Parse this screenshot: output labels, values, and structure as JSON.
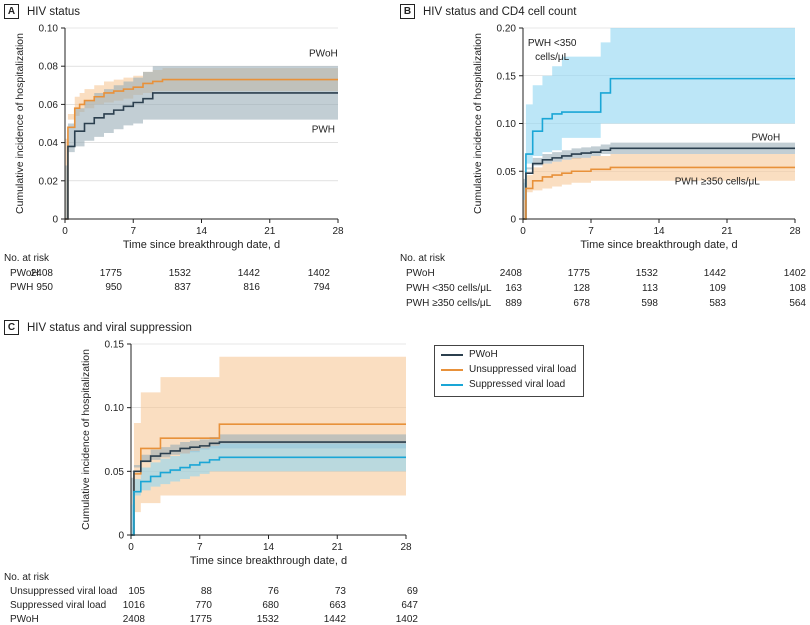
{
  "colors": {
    "pwoh": "#e8913a",
    "pwoh_band": "#f7c897",
    "pwh": "#2b3f4e",
    "pwh_band": "#9aaeb8",
    "cd4_low": "#1aa6d6",
    "cd4_low_band": "#8fd6f2",
    "cd4_high": "#e8913a",
    "cd4_high_band": "#f7c897",
    "vs_unsupp": "#e8913a",
    "vs_unsupp_band": "#f7c897",
    "vs_supp": "#1aa6d6",
    "vs_supp_band": "#8fd6f2",
    "axis": "#222222",
    "grid": "#cfcfcf"
  },
  "panel_a": {
    "letter": "A",
    "title": "HIV status",
    "risk": {
      "title": "No. at risk",
      "rows": [
        {
          "label": "PWoH",
          "values": [
            "2408",
            "1775",
            "1532",
            "1442",
            "1402"
          ]
        },
        {
          "label": "PWH",
          "values": [
            "950",
            "950",
            "837",
            "816",
            "794"
          ]
        }
      ]
    }
  },
  "panel_b": {
    "letter": "B",
    "title": "HIV status and CD4 cell count",
    "risk": {
      "title": "No. at risk",
      "rows": [
        {
          "label": "PWoH",
          "values": [
            "2408",
            "1775",
            "1532",
            "1442",
            "1402"
          ]
        },
        {
          "label": "PWH <350 cells/μL",
          "values": [
            "163",
            "128",
            "113",
            "109",
            "108"
          ]
        },
        {
          "label": "PWH ≥350 cells/μL",
          "values": [
            "889",
            "678",
            "598",
            "583",
            "564"
          ]
        }
      ]
    }
  },
  "panel_c": {
    "letter": "C",
    "title": "HIV status and viral suppression",
    "legend": [
      {
        "name": "PWoH",
        "color": "#2b3f4e"
      },
      {
        "name": "Unsuppressed viral load",
        "color": "#e8913a"
      },
      {
        "name": "Suppressed viral load",
        "color": "#1aa6d6"
      }
    ],
    "risk": {
      "title": "No. at risk",
      "rows": [
        {
          "label": "Unsuppressed viral load",
          "values": [
            "105",
            "88",
            "76",
            "73",
            "69"
          ]
        },
        {
          "label": "Suppressed viral load",
          "values": [
            "1016",
            "770",
            "680",
            "663",
            "647"
          ]
        },
        {
          "label": "PWoH",
          "values": [
            "2408",
            "1775",
            "1532",
            "1442",
            "1402"
          ]
        }
      ]
    }
  },
  "chart_data": [
    {
      "type": "line",
      "panel": "A",
      "title": "HIV status",
      "xlabel": "Time since breakthrough date, d",
      "ylabel": "Cumulative incidence of hospitalization",
      "xlim": [
        0,
        28
      ],
      "ylim": [
        0,
        0.1
      ],
      "xticks": [
        "0",
        "7",
        "14",
        "21",
        "28"
      ],
      "yticks": [
        "0",
        "0.02",
        "0.04",
        "0.06",
        "0.08",
        "0.10"
      ],
      "series": [
        {
          "name": "PWoH",
          "color": "#e8913a",
          "band": "#f7c897",
          "x": [
            0,
            0.3,
            1,
            1.5,
            2,
            3,
            4,
            5,
            6,
            7,
            8,
            9,
            10,
            28
          ],
          "y": [
            0,
            0.048,
            0.058,
            0.06,
            0.062,
            0.064,
            0.066,
            0.067,
            0.068,
            0.069,
            0.071,
            0.072,
            0.073,
            0.073
          ],
          "lower": [
            0,
            0.042,
            0.052,
            0.054,
            0.056,
            0.058,
            0.06,
            0.061,
            0.062,
            0.063,
            0.065,
            0.066,
            0.067,
            0.067
          ],
          "upper": [
            0,
            0.055,
            0.064,
            0.066,
            0.068,
            0.07,
            0.072,
            0.073,
            0.074,
            0.075,
            0.077,
            0.078,
            0.079,
            0.079
          ]
        },
        {
          "name": "PWH",
          "color": "#2b3f4e",
          "band": "#9aaeb8",
          "x": [
            0,
            0.3,
            1,
            2,
            3,
            4,
            5,
            6,
            7,
            8,
            9,
            28
          ],
          "y": [
            0,
            0.038,
            0.046,
            0.05,
            0.053,
            0.055,
            0.057,
            0.059,
            0.061,
            0.063,
            0.066,
            0.066
          ],
          "lower": [
            0,
            0.028,
            0.035,
            0.038,
            0.041,
            0.043,
            0.045,
            0.047,
            0.049,
            0.05,
            0.052,
            0.052
          ],
          "upper": [
            0,
            0.05,
            0.058,
            0.062,
            0.066,
            0.068,
            0.07,
            0.072,
            0.074,
            0.077,
            0.08,
            0.08
          ]
        }
      ],
      "annotations": [
        {
          "text": "PWoH",
          "x": 26.5,
          "y": 0.087
        },
        {
          "text": "PWH",
          "x": 26.5,
          "y": 0.047
        }
      ]
    },
    {
      "type": "line",
      "panel": "B",
      "title": "HIV status and CD4 cell count",
      "xlabel": "Time since breakthrough date, d",
      "ylabel": "Cumulative incidence of hospitalization",
      "xlim": [
        0,
        28
      ],
      "ylim": [
        0,
        0.2
      ],
      "xticks": [
        "0",
        "7",
        "14",
        "21",
        "28"
      ],
      "yticks": [
        "0",
        "0.05",
        "0.10",
        "0.15",
        "0.20"
      ],
      "series": [
        {
          "name": "PWH <350 cells/μL",
          "color": "#1aa6d6",
          "band": "#8fd6f2",
          "x": [
            0,
            0.3,
            1,
            2,
            3,
            4,
            8,
            9,
            28
          ],
          "y": [
            0,
            0.068,
            0.092,
            0.105,
            0.11,
            0.112,
            0.132,
            0.147,
            0.147
          ],
          "lower": [
            0,
            0.038,
            0.058,
            0.066,
            0.07,
            0.072,
            0.085,
            0.1,
            0.1
          ],
          "upper": [
            0,
            0.12,
            0.14,
            0.15,
            0.16,
            0.17,
            0.185,
            0.2,
            0.2
          ]
        },
        {
          "name": "PWoH",
          "color": "#2b3f4e",
          "band": "#9aaeb8",
          "x": [
            0,
            0.3,
            1,
            2,
            3,
            4,
            5,
            6,
            7,
            8,
            9,
            28
          ],
          "y": [
            0,
            0.048,
            0.058,
            0.062,
            0.064,
            0.066,
            0.068,
            0.069,
            0.07,
            0.072,
            0.074,
            0.074
          ],
          "lower": [
            0,
            0.042,
            0.052,
            0.056,
            0.058,
            0.06,
            0.062,
            0.063,
            0.064,
            0.066,
            0.068,
            0.068
          ],
          "upper": [
            0,
            0.054,
            0.064,
            0.068,
            0.07,
            0.072,
            0.074,
            0.075,
            0.076,
            0.078,
            0.08,
            0.08
          ]
        },
        {
          "name": "PWH ≥350 cells/μL",
          "color": "#e8913a",
          "band": "#f7c897",
          "x": [
            0,
            0.3,
            1,
            2,
            3,
            4,
            5,
            7,
            9,
            28
          ],
          "y": [
            0,
            0.032,
            0.04,
            0.044,
            0.046,
            0.048,
            0.05,
            0.052,
            0.054,
            0.054
          ],
          "lower": [
            0,
            0.02,
            0.028,
            0.03,
            0.032,
            0.034,
            0.036,
            0.038,
            0.04,
            0.04
          ],
          "upper": [
            0,
            0.046,
            0.054,
            0.058,
            0.06,
            0.062,
            0.064,
            0.066,
            0.068,
            0.068
          ]
        }
      ],
      "annotations": [
        {
          "text": "PWH <350",
          "x": 3,
          "y": 0.185
        },
        {
          "text": "cells/μL",
          "x": 3,
          "y": 0.17
        },
        {
          "text": "PWoH",
          "x": 25,
          "y": 0.086
        },
        {
          "text": "PWH ≥350 cells/μL",
          "x": 20,
          "y": 0.04
        }
      ]
    },
    {
      "type": "line",
      "panel": "C",
      "title": "HIV status and viral suppression",
      "xlabel": "Time since breakthrough date, d",
      "ylabel": "Cumulative incidence of hospitalization",
      "xlim": [
        0,
        28
      ],
      "ylim": [
        0,
        0.15
      ],
      "xticks": [
        "0",
        "7",
        "14",
        "21",
        "28"
      ],
      "yticks": [
        "0",
        "0.05",
        "0.10",
        "0.15"
      ],
      "legend_position": "top-right",
      "series": [
        {
          "name": "Unsuppressed viral load",
          "color": "#e8913a",
          "band": "#f7c897",
          "x": [
            0,
            0.3,
            1,
            3,
            9,
            28
          ],
          "y": [
            0,
            0.048,
            0.068,
            0.076,
            0.087,
            0.087
          ],
          "lower": [
            0,
            0.006,
            0.018,
            0.025,
            0.031,
            0.031
          ],
          "upper": [
            0,
            0.088,
            0.112,
            0.124,
            0.14,
            0.14
          ]
        },
        {
          "name": "PWoH",
          "color": "#2b3f4e",
          "band": "#9aaeb8",
          "x": [
            0,
            0.3,
            1,
            2,
            3,
            4,
            5,
            6,
            7,
            8,
            9,
            28
          ],
          "y": [
            0,
            0.05,
            0.058,
            0.062,
            0.064,
            0.066,
            0.068,
            0.069,
            0.07,
            0.072,
            0.073,
            0.073
          ],
          "lower": [
            0,
            0.045,
            0.053,
            0.057,
            0.059,
            0.061,
            0.063,
            0.064,
            0.065,
            0.067,
            0.068,
            0.068
          ],
          "upper": [
            0,
            0.055,
            0.063,
            0.067,
            0.069,
            0.071,
            0.073,
            0.074,
            0.075,
            0.077,
            0.079,
            0.079
          ]
        },
        {
          "name": "Suppressed viral load",
          "color": "#1aa6d6",
          "band": "#8fd6f2",
          "x": [
            0,
            0.3,
            1,
            2,
            3,
            4,
            5,
            6,
            7,
            8,
            9,
            28
          ],
          "y": [
            0,
            0.034,
            0.042,
            0.046,
            0.049,
            0.051,
            0.053,
            0.055,
            0.057,
            0.059,
            0.061,
            0.061
          ],
          "lower": [
            0,
            0.024,
            0.031,
            0.035,
            0.038,
            0.04,
            0.042,
            0.044,
            0.046,
            0.048,
            0.05,
            0.05
          ],
          "upper": [
            0,
            0.044,
            0.053,
            0.057,
            0.06,
            0.062,
            0.064,
            0.066,
            0.068,
            0.07,
            0.072,
            0.072
          ]
        }
      ]
    }
  ]
}
